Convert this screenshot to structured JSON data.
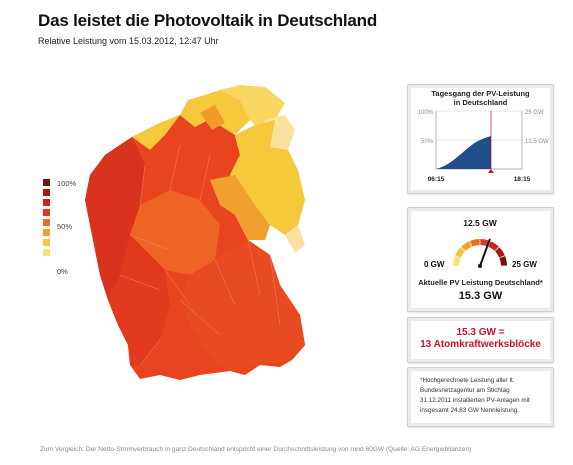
{
  "header": {
    "title": "Das leistet die Photovoltaik in Deutschland",
    "subtitle": "Relative Leistung vom 15.03.2012, 12:47 Uhr"
  },
  "legend": {
    "labels": [
      "100%",
      "50%",
      "0%"
    ],
    "colors": [
      "#7a1010",
      "#a8180e",
      "#c8261a",
      "#e03a1e",
      "#f06a24",
      "#f8a02a",
      "#f9c43a",
      "#fbe07a"
    ]
  },
  "map_colors": {
    "red_dark": "#d9331e",
    "red": "#e8441f",
    "orange": "#ee6326",
    "yellow": "#f5c93b",
    "yellow_light": "#f8d761",
    "pale": "#fbe1a0"
  },
  "daily_curve": {
    "title_line1": "Tagesgang der PV-Leistung",
    "title_line2": "in Deutschland",
    "y_left": [
      "100%",
      "50%"
    ],
    "y_right": [
      "25 GW",
      "12.5 GW"
    ],
    "x_start": "06:15",
    "x_end": "18:15",
    "fill_color": "#1f4e8a"
  },
  "gauge": {
    "top_label": "12.5 GW",
    "left_label": "0 GW",
    "right_label": "25 GW",
    "caption": "Aktuelle PV Leistung Deutschland*",
    "value_text": "15.3 GW",
    "value_fraction": 0.612
  },
  "equivalent": {
    "line1": "15.3 GW =",
    "line2": "13 Atomkraftwerksblöcke",
    "color": "#c8102e"
  },
  "note": {
    "line1": "*Hochgerechnete Leistung aller lt.",
    "line2": "Bundesnetzagentur am Stichtag",
    "line3": "31.12.2011 installierten PV-Anlagen mit",
    "line4": "insgesamt 24.83 GW Nennleistung."
  },
  "footer": {
    "text": "Zum Vergleich: Der Netto-Stromverbrauch in ganz Deutschland entspricht einer Durchschnittsleistung von rund 60GW (Quelle: AG Energiebilanzen)"
  }
}
